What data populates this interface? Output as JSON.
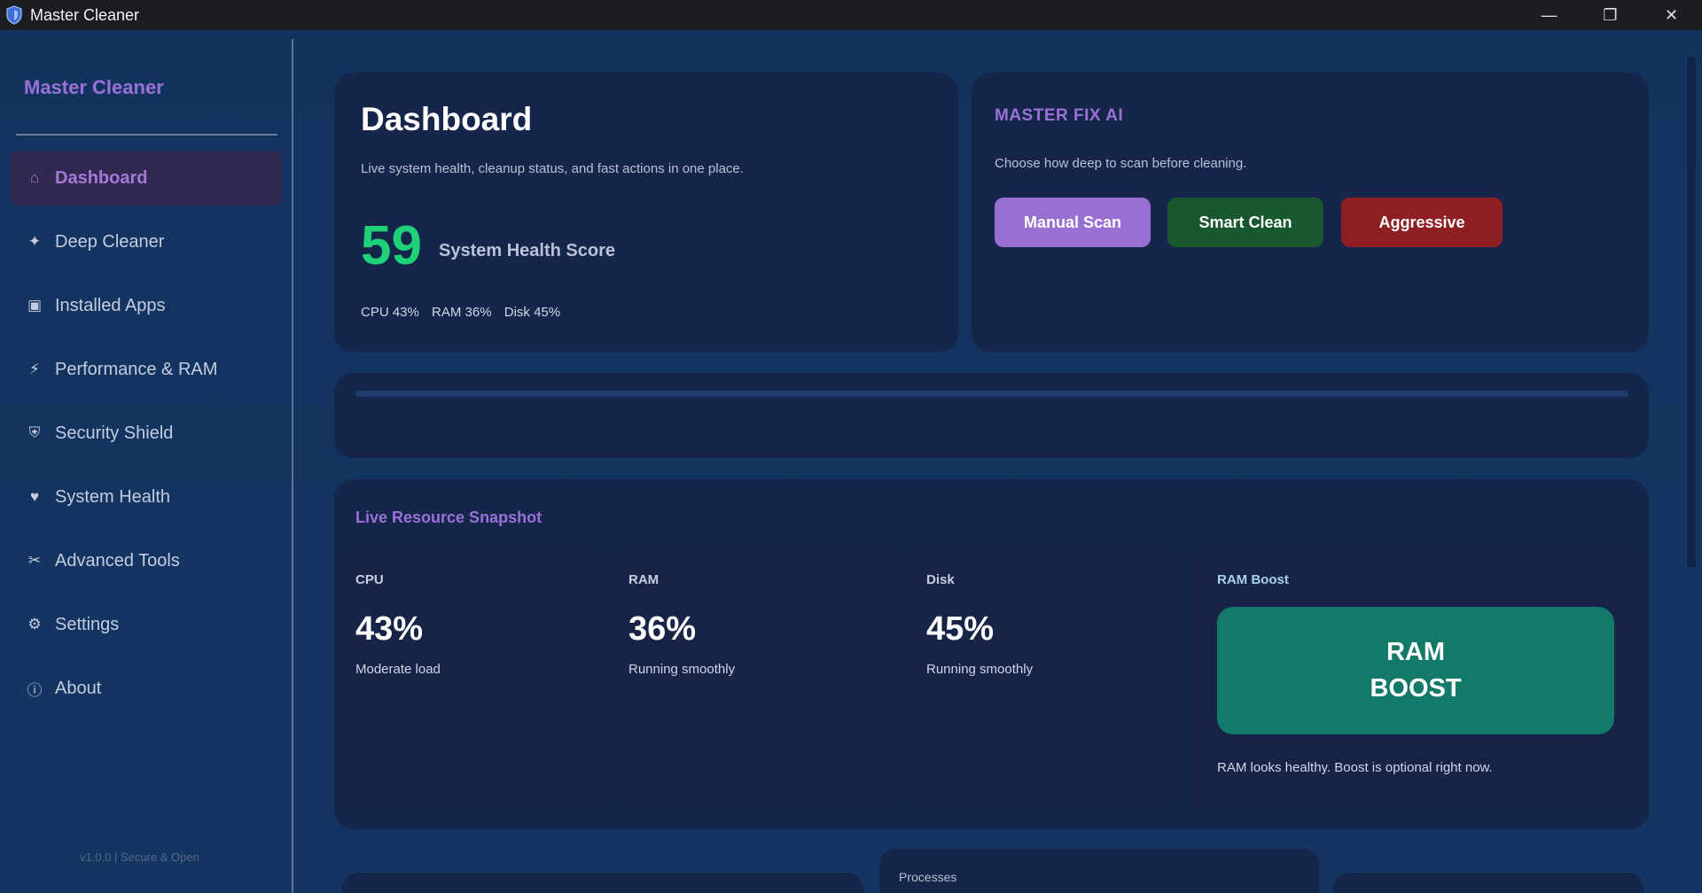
{
  "window": {
    "title": "Master Cleaner",
    "controls": {
      "minimize": "—",
      "maximize": "❐",
      "close": "✕"
    }
  },
  "sidebar": {
    "brand": "Master Cleaner",
    "items": [
      {
        "label": "Dashboard",
        "icon": "home-icon",
        "glyph": "⌂",
        "active": true
      },
      {
        "label": "Deep Cleaner",
        "icon": "sparkle-icon",
        "glyph": "✦"
      },
      {
        "label": "Installed Apps",
        "icon": "apps-icon",
        "glyph": "▣"
      },
      {
        "label": "Performance & RAM",
        "icon": "lightning-icon",
        "glyph": "⚡"
      },
      {
        "label": "Security Shield",
        "icon": "shield-icon",
        "glyph": "⛨"
      },
      {
        "label": "System Health",
        "icon": "heart-icon",
        "glyph": "♥"
      },
      {
        "label": "Advanced Tools",
        "icon": "tools-icon",
        "glyph": "✂"
      },
      {
        "label": "Settings",
        "icon": "gear-icon",
        "glyph": "⚙"
      },
      {
        "label": "About",
        "icon": "info-icon",
        "glyph": "ⓘ"
      }
    ],
    "version": "v1.0.0  |  Secure & Open"
  },
  "dashboard": {
    "title": "Dashboard",
    "subtitle": "Live system health, cleanup status, and fast actions in one place.",
    "score": "59",
    "score_label": "System Health Score",
    "stats": {
      "cpu": "CPU 43%",
      "ram": "RAM 36%",
      "disk": "Disk 45%"
    }
  },
  "master_fix": {
    "title": "MASTER FIX AI",
    "subtitle": "Choose how deep to scan before cleaning.",
    "buttons": {
      "manual": "Manual Scan",
      "smart": "Smart Clean",
      "aggressive": "Aggressive"
    }
  },
  "snapshot": {
    "title": "Live Resource Snapshot",
    "cpu": {
      "label": "CPU",
      "value": "43%",
      "status": "Moderate load"
    },
    "ram": {
      "label": "RAM",
      "value": "36%",
      "status": "Running smoothly"
    },
    "disk": {
      "label": "Disk",
      "value": "45%",
      "status": "Running smoothly"
    },
    "boost": {
      "label": "RAM Boost",
      "button_line1": "RAM",
      "button_line2": "BOOST",
      "note": "RAM looks healthy. Boost is optional right now."
    }
  },
  "bottom": {
    "processes_label": "Processes"
  },
  "colors": {
    "accent_purple": "#9a71d6",
    "health_green": "#1fd27a",
    "smart_green": "#17582e",
    "aggressive_red": "#8e1f23",
    "boost_teal": "#137a6a"
  }
}
